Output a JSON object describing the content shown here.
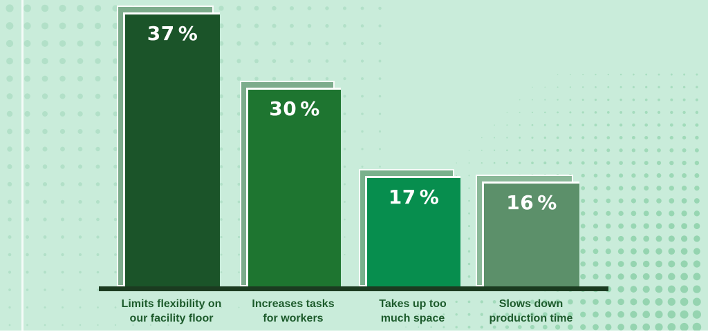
{
  "chart_data": {
    "type": "bar",
    "title": "",
    "categories": [
      "Limits flexibility on our facility floor",
      "Increases tasks for workers",
      "Takes up too much space",
      "Slows down production time"
    ],
    "values": [
      37,
      30,
      17,
      16
    ],
    "unit": "%",
    "ylim": [
      0,
      40
    ],
    "grid": false,
    "legend": "none",
    "bars": [
      {
        "value": "37",
        "suffix": "%",
        "label_line1": "Limits flexibility on",
        "label_line2": "our facility floor",
        "fill": "#1b5429",
        "shadow": "#7dac8c"
      },
      {
        "value": "30",
        "suffix": "%",
        "label_line1": "Increases tasks",
        "label_line2": "for workers",
        "fill": "#1e7530",
        "shadow": "#7dac8c"
      },
      {
        "value": "17",
        "suffix": "%",
        "label_line1": "Takes up too",
        "label_line2": "much space",
        "fill": "#078e4e",
        "shadow": "#79b18c"
      },
      {
        "value": "16",
        "suffix": "%",
        "label_line1": "Slows down",
        "label_line2": "production time",
        "fill": "#5c906a",
        "shadow": "#8ab898"
      }
    ]
  },
  "theme": {
    "background": "#c9ecda",
    "dot_color_soft": "#a9dcc2",
    "dot_color_strong": "#8fd2ab",
    "axis_color": "#1b3b20",
    "category_text_color": "#1d5b2c",
    "value_text_color": "#ffffff"
  }
}
